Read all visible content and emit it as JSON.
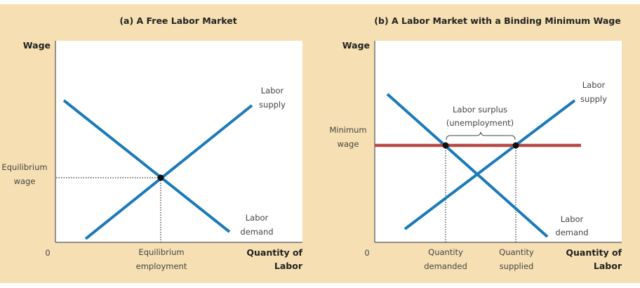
{
  "colors": {
    "background": "#f6e0b3",
    "plot_area": "#ffffff",
    "curves": "#1a7ab8",
    "minimum_wage_line": "#b84a45",
    "points": "#111111"
  },
  "panel_a": {
    "title": "(a) A Free Labor Market",
    "y_axis_label": "Wage",
    "x_axis_label_line1": "Quantity of",
    "x_axis_label_line2": "Labor",
    "origin": "0",
    "equilibrium_wage_line1": "Equilibrium",
    "equilibrium_wage_line2": "wage",
    "equilibrium_employment_line1": "Equilibrium",
    "equilibrium_employment_line2": "employment",
    "supply_label_line1": "Labor",
    "supply_label_line2": "supply",
    "demand_label_line1": "Labor",
    "demand_label_line2": "demand"
  },
  "panel_b": {
    "title": "(b) A Labor Market with a Binding Minimum Wage",
    "y_axis_label": "Wage",
    "x_axis_label_line1": "Quantity of",
    "x_axis_label_line2": "Labor",
    "origin": "0",
    "minimum_wage_line1": "Minimum",
    "minimum_wage_line2": "wage",
    "surplus_line1": "Labor surplus",
    "surplus_line2": "(unemployment)",
    "quantity_demanded_line1": "Quantity",
    "quantity_demanded_line2": "demanded",
    "quantity_supplied_line1": "Quantity",
    "quantity_supplied_line2": "supplied",
    "supply_label_line1": "Labor",
    "supply_label_line2": "supply",
    "demand_label_line1": "Labor",
    "demand_label_line2": "demand"
  }
}
